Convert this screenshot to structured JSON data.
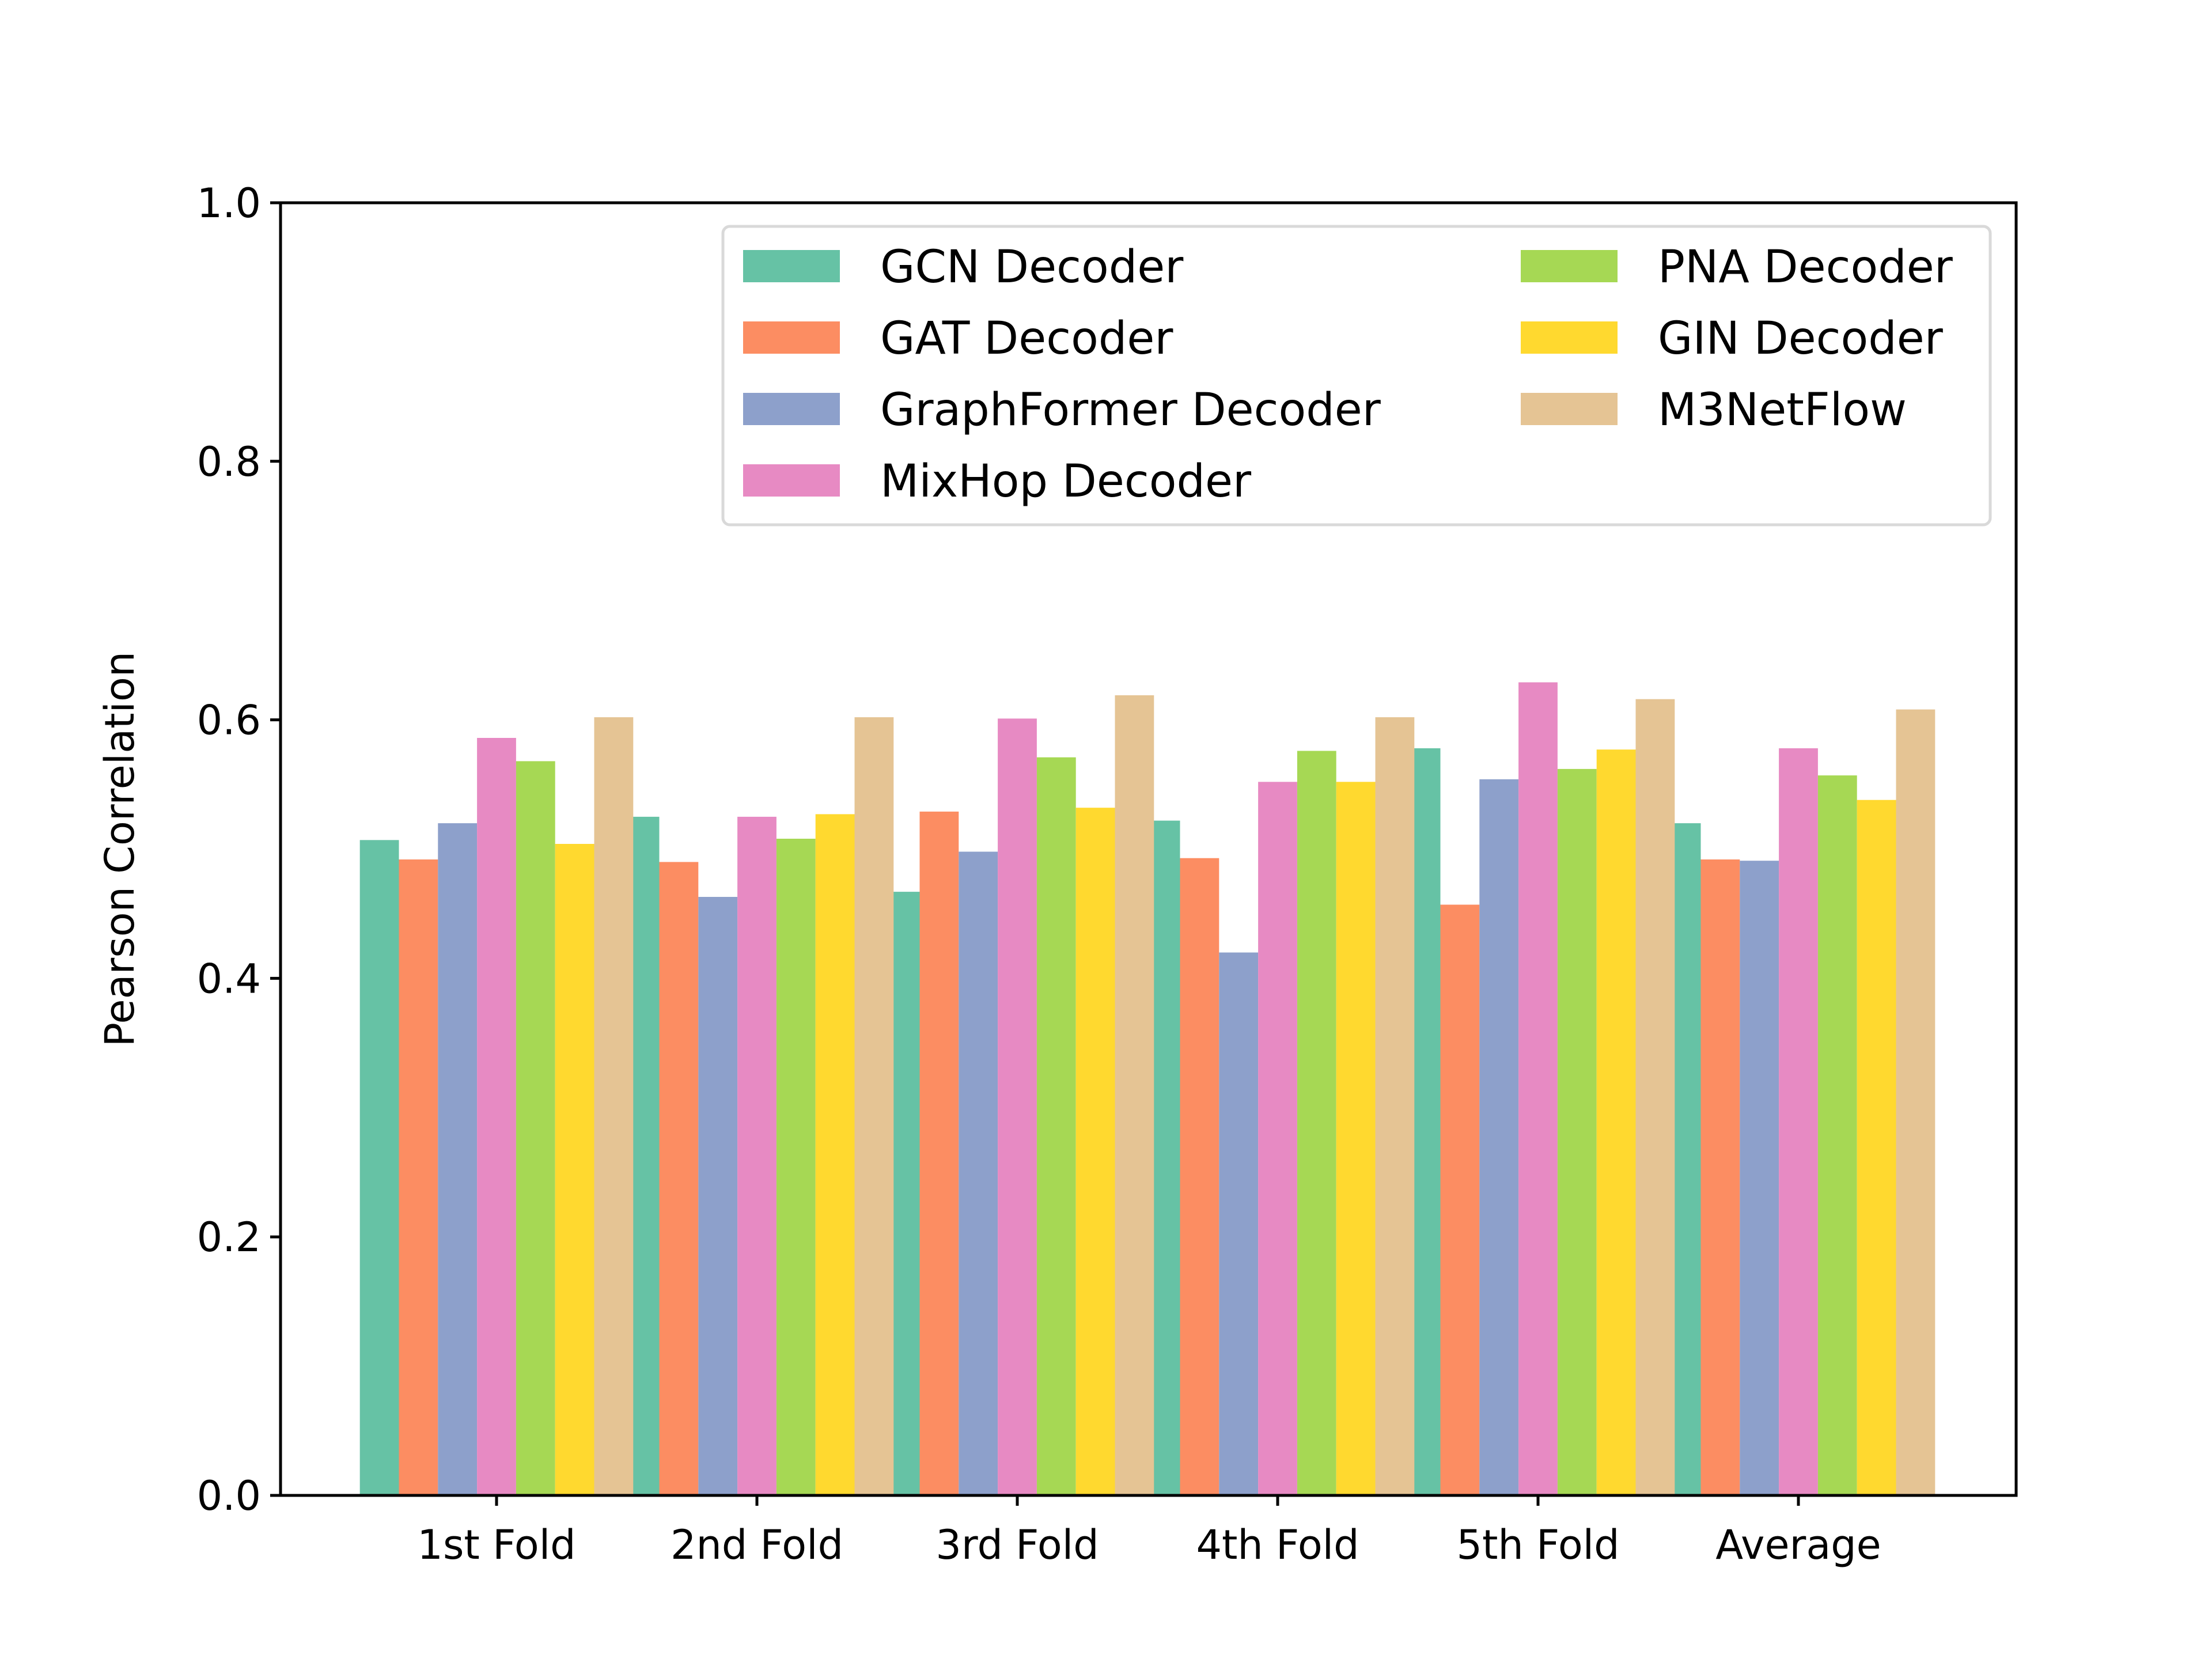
{
  "chart_data": {
    "type": "bar",
    "title": "",
    "xlabel": "",
    "ylabel": "Pearson Correlation",
    "ylim": [
      0,
      1.0
    ],
    "yticks": [
      "0.0",
      "0.2",
      "0.4",
      "0.6",
      "0.8",
      "1.0"
    ],
    "ytick_values": [
      0.0,
      0.2,
      0.4,
      0.6,
      0.8,
      1.0
    ],
    "categories": [
      "1st Fold",
      "2nd Fold",
      "3rd Fold",
      "4th Fold",
      "5th Fold",
      "Average"
    ],
    "grid": false,
    "legend_position": "top-right",
    "series": [
      {
        "name": "GCN Decoder",
        "color": "#66c2a5",
        "values": [
          0.507,
          0.525,
          0.467,
          0.522,
          0.578,
          0.52
        ]
      },
      {
        "name": "GAT Decoder",
        "color": "#fc8d62",
        "values": [
          0.492,
          0.49,
          0.529,
          0.493,
          0.457,
          0.492
        ]
      },
      {
        "name": "GraphFormer Decoder",
        "color": "#8da0cb",
        "values": [
          0.52,
          0.463,
          0.498,
          0.42,
          0.554,
          0.491
        ]
      },
      {
        "name": "MixHop Decoder",
        "color": "#e78ac3",
        "values": [
          0.586,
          0.525,
          0.601,
          0.552,
          0.629,
          0.578
        ]
      },
      {
        "name": "PNA Decoder",
        "color": "#a6d854",
        "values": [
          0.568,
          0.508,
          0.571,
          0.576,
          0.562,
          0.557
        ]
      },
      {
        "name": "GIN Decoder",
        "color": "#ffd92f",
        "values": [
          0.504,
          0.527,
          0.532,
          0.552,
          0.577,
          0.538
        ]
      },
      {
        "name": "M3NetFlow",
        "color": "#e5c494",
        "values": [
          0.602,
          0.602,
          0.619,
          0.602,
          0.616,
          0.608
        ]
      }
    ]
  }
}
